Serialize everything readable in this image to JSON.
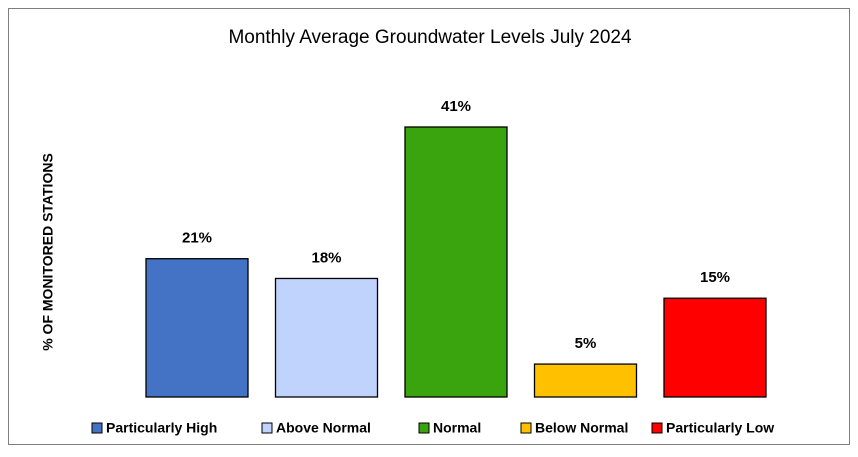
{
  "chart_data": {
    "type": "bar",
    "title": "Monthly Average Groundwater Levels July 2024",
    "y_label": "% OF MONITORED STATIONS",
    "series": [
      {
        "name": "Particularly High",
        "color": "#4472c4",
        "values": [
          21
        ],
        "value_labels": [
          "21%"
        ]
      },
      {
        "name": "Above Normal",
        "color": "#c0d3fc",
        "values": [
          18
        ],
        "value_labels": [
          "18%"
        ]
      },
      {
        "name": "Normal",
        "color": "#3aa40e",
        "values": [
          41
        ],
        "value_labels": [
          "41%"
        ]
      },
      {
        "name": "Below Normal",
        "color": "#ffc000",
        "values": [
          5
        ],
        "value_labels": [
          "5%"
        ]
      },
      {
        "name": "Particularly Low",
        "color": "#ff0000",
        "values": [
          15
        ],
        "value_labels": [
          "15%"
        ]
      }
    ],
    "legend": "bottom"
  }
}
